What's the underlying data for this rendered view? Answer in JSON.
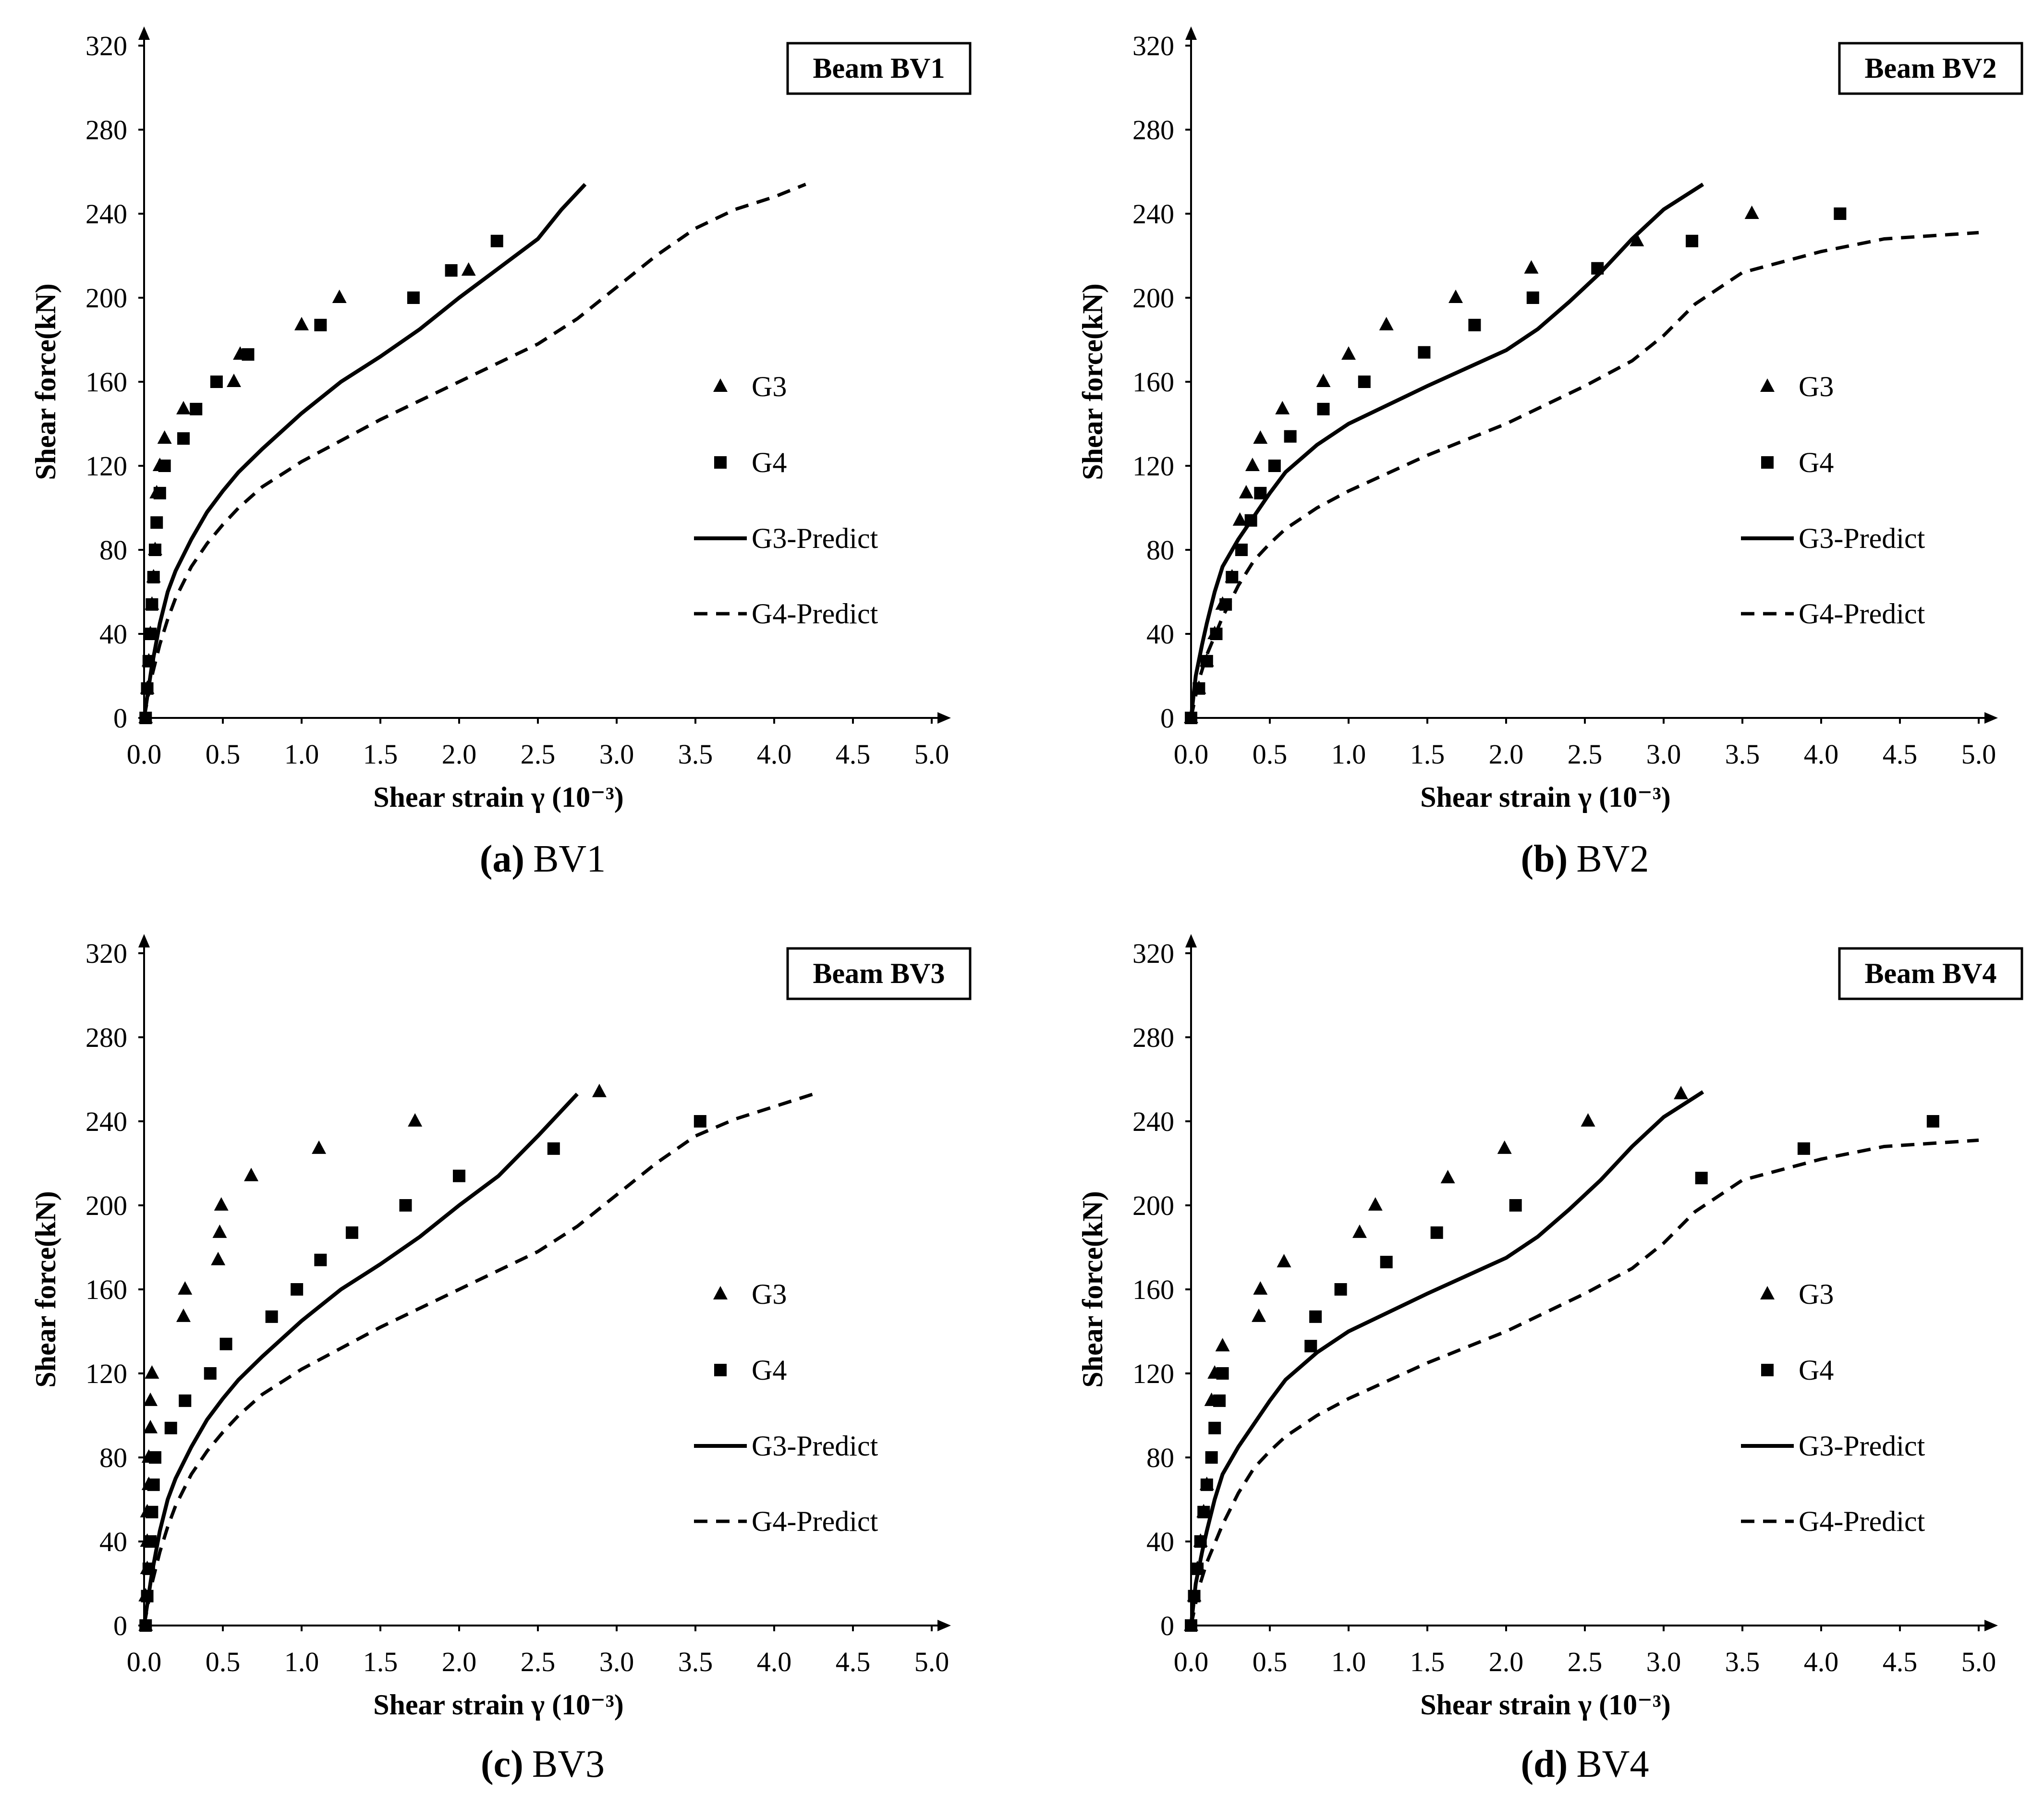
{
  "legend": {
    "g3": "G3",
    "g4": "G4",
    "g3_predict": "G3-Predict",
    "g4_predict": "G4-Predict"
  },
  "chart_data": [
    {
      "type": "scatter",
      "title": "Beam BV1",
      "caption_letter": "(a)",
      "caption_text": "BV1",
      "xlabel": "Shear strain γ (10⁻³)",
      "ylabel": "Shear force(kN)",
      "xlim": [
        0,
        5
      ],
      "ylim": [
        0,
        320
      ],
      "xticks": [
        "0.0",
        "0.5",
        "1.0",
        "1.5",
        "2.0",
        "2.5",
        "3.0",
        "3.5",
        "4.0",
        "4.5",
        "5.0"
      ],
      "yticks": [
        "0",
        "40",
        "80",
        "120",
        "160",
        "200",
        "240",
        "280",
        "320"
      ],
      "series": [
        {
          "name": "G3",
          "style": "triangle",
          "x": [
            0.01,
            0.02,
            0.03,
            0.04,
            0.05,
            0.06,
            0.07,
            0.08,
            0.1,
            0.13,
            0.25,
            0.57,
            0.61,
            1.0,
            1.24,
            2.06
          ],
          "y": [
            0,
            14,
            27,
            40,
            54,
            67,
            80,
            107,
            120,
            133,
            147,
            160,
            173,
            187,
            200,
            213
          ]
        },
        {
          "name": "G4",
          "style": "square",
          "x": [
            0.01,
            0.02,
            0.03,
            0.04,
            0.05,
            0.06,
            0.07,
            0.08,
            0.1,
            0.13,
            0.25,
            0.33,
            0.46,
            0.66,
            1.12,
            1.71,
            1.95,
            2.24
          ],
          "y": [
            0,
            14,
            27,
            40,
            54,
            67,
            80,
            93,
            107,
            120,
            133,
            147,
            160,
            173,
            187,
            200,
            213,
            227
          ]
        },
        {
          "name": "G3-Predict",
          "style": "solid",
          "x": [
            0.0,
            0.05,
            0.1,
            0.15,
            0.2,
            0.3,
            0.4,
            0.5,
            0.6,
            0.75,
            1.0,
            1.25,
            1.5,
            1.75,
            2.0,
            2.25,
            2.5,
            2.65,
            2.8
          ],
          "y": [
            0,
            25,
            45,
            60,
            70,
            85,
            98,
            108,
            117,
            128,
            145,
            160,
            172,
            185,
            200,
            214,
            228,
            242,
            254
          ]
        },
        {
          "name": "G4-Predict",
          "style": "dashed",
          "x": [
            0.0,
            0.05,
            0.1,
            0.15,
            0.2,
            0.3,
            0.4,
            0.5,
            0.6,
            0.75,
            1.0,
            1.5,
            2.0,
            2.5,
            2.75,
            3.0,
            3.25,
            3.5,
            3.75,
            4.0,
            4.2
          ],
          "y": [
            0,
            20,
            35,
            47,
            57,
            72,
            83,
            92,
            100,
            110,
            122,
            142,
            160,
            178,
            190,
            205,
            220,
            233,
            242,
            248,
            254
          ]
        }
      ]
    },
    {
      "type": "scatter",
      "title": "Beam BV2",
      "caption_letter": "(b)",
      "caption_text": "BV2",
      "xlabel": "Shear strain γ (10⁻³)",
      "ylabel": "Shear force(kN)",
      "xlim": [
        0,
        5
      ],
      "ylim": [
        0,
        320
      ],
      "xticks": [
        "0.0",
        "0.5",
        "1.0",
        "1.5",
        "2.0",
        "2.5",
        "3.0",
        "3.5",
        "4.0",
        "4.5",
        "5.0"
      ],
      "yticks": [
        "0",
        "40",
        "80",
        "120",
        "160",
        "200",
        "240",
        "280",
        "320"
      ],
      "series": [
        {
          "name": "G3",
          "style": "triangle",
          "x": [
            0.0,
            0.05,
            0.1,
            0.15,
            0.2,
            0.26,
            0.31,
            0.35,
            0.39,
            0.44,
            0.58,
            0.84,
            1.0,
            1.24,
            1.68,
            2.16,
            2.83,
            3.56
          ],
          "y": [
            0,
            14,
            27,
            40,
            54,
            67,
            94,
            107,
            120,
            133,
            147,
            160,
            173,
            187,
            200,
            214,
            227,
            240
          ]
        },
        {
          "name": "G4",
          "style": "square",
          "x": [
            0.0,
            0.05,
            0.1,
            0.16,
            0.22,
            0.26,
            0.32,
            0.38,
            0.44,
            0.53,
            0.63,
            0.84,
            1.1,
            1.48,
            1.8,
            2.17,
            2.58,
            3.18,
            4.12
          ],
          "y": [
            0,
            14,
            27,
            40,
            54,
            67,
            80,
            94,
            107,
            120,
            134,
            147,
            160,
            174,
            187,
            200,
            214,
            227,
            240
          ]
        },
        {
          "name": "G3-Predict",
          "style": "solid",
          "x": [
            0.0,
            0.03,
            0.07,
            0.1,
            0.15,
            0.2,
            0.3,
            0.4,
            0.5,
            0.6,
            0.8,
            1.0,
            1.5,
            2.0,
            2.2,
            2.4,
            2.6,
            2.8,
            3.0,
            3.25
          ],
          "y": [
            0,
            20,
            35,
            45,
            60,
            72,
            85,
            96,
            107,
            117,
            130,
            140,
            158,
            175,
            185,
            198,
            212,
            228,
            242,
            254
          ]
        },
        {
          "name": "G4-Predict",
          "style": "dashed",
          "x": [
            0.0,
            0.05,
            0.1,
            0.2,
            0.3,
            0.4,
            0.5,
            0.6,
            0.8,
            1.0,
            1.5,
            2.0,
            2.5,
            2.8,
            3.0,
            3.2,
            3.5,
            4.0,
            4.4,
            5.0
          ],
          "y": [
            0,
            18,
            30,
            48,
            63,
            75,
            83,
            90,
            100,
            108,
            125,
            140,
            158,
            170,
            182,
            197,
            212,
            222,
            228,
            231
          ]
        }
      ]
    },
    {
      "type": "scatter",
      "title": "Beam BV3",
      "caption_letter": "(c)",
      "caption_text": "BV3",
      "xlabel": "Shear strain γ (10⁻³)",
      "ylabel": "Shear force(kN)",
      "xlim": [
        0,
        5
      ],
      "ylim": [
        0,
        320
      ],
      "xticks": [
        "0.0",
        "0.5",
        "1.0",
        "1.5",
        "2.0",
        "2.5",
        "3.0",
        "3.5",
        "4.0",
        "4.5",
        "5.0"
      ],
      "yticks": [
        "0",
        "40",
        "80",
        "120",
        "160",
        "200",
        "240",
        "280",
        "320"
      ],
      "series": [
        {
          "name": "G3",
          "style": "triangle",
          "x": [
            0.01,
            0.01,
            0.02,
            0.02,
            0.02,
            0.03,
            0.03,
            0.04,
            0.04,
            0.05,
            0.25,
            0.26,
            0.47,
            0.48,
            0.49,
            0.68,
            1.11,
            1.72,
            2.89
          ],
          "y": [
            0,
            14,
            27,
            40,
            54,
            67,
            80,
            94,
            107,
            120,
            147,
            160,
            174,
            187,
            200,
            214,
            227,
            240,
            254
          ]
        },
        {
          "name": "G4",
          "style": "square",
          "x": [
            0.01,
            0.02,
            0.03,
            0.04,
            0.05,
            0.06,
            0.07,
            0.17,
            0.26,
            0.42,
            0.52,
            0.81,
            0.97,
            1.12,
            1.32,
            1.66,
            2.0,
            2.6,
            3.53
          ],
          "y": [
            0,
            14,
            27,
            40,
            54,
            67,
            80,
            94,
            107,
            120,
            134,
            147,
            160,
            174,
            187,
            200,
            214,
            227,
            240
          ]
        },
        {
          "name": "G3-Predict",
          "style": "solid",
          "x": [
            0.0,
            0.05,
            0.1,
            0.15,
            0.2,
            0.3,
            0.4,
            0.5,
            0.6,
            0.75,
            1.0,
            1.25,
            1.5,
            1.75,
            2.0,
            2.25,
            2.5,
            2.75
          ],
          "y": [
            0,
            25,
            45,
            60,
            70,
            85,
            98,
            108,
            117,
            128,
            145,
            160,
            172,
            185,
            200,
            214,
            233,
            253
          ]
        },
        {
          "name": "G4-Predict",
          "style": "dashed",
          "x": [
            0.0,
            0.05,
            0.1,
            0.15,
            0.2,
            0.3,
            0.4,
            0.5,
            0.6,
            0.75,
            1.0,
            1.5,
            2.0,
            2.5,
            2.75,
            3.0,
            3.25,
            3.5,
            3.75,
            4.0,
            4.25
          ],
          "y": [
            0,
            20,
            35,
            47,
            57,
            72,
            83,
            92,
            100,
            110,
            122,
            142,
            160,
            178,
            190,
            205,
            220,
            233,
            241,
            247,
            253
          ]
        }
      ]
    },
    {
      "type": "scatter",
      "title": "Beam BV4",
      "caption_letter": "(d)",
      "caption_text": "BV4",
      "xlabel": "Shear strain γ (10⁻³)",
      "ylabel": "Shear force(kN)",
      "xlim": [
        0,
        5
      ],
      "ylim": [
        0,
        320
      ],
      "xticks": [
        "0.0",
        "0.5",
        "1.0",
        "1.5",
        "2.0",
        "2.5",
        "3.0",
        "3.5",
        "4.0",
        "4.5",
        "5.0"
      ],
      "yticks": [
        "0",
        "40",
        "80",
        "120",
        "160",
        "200",
        "240",
        "280",
        "320"
      ],
      "series": [
        {
          "name": "G3",
          "style": "triangle",
          "x": [
            0.0,
            0.02,
            0.04,
            0.06,
            0.08,
            0.1,
            0.13,
            0.15,
            0.2,
            0.43,
            0.44,
            0.59,
            1.07,
            1.17,
            1.63,
            1.99,
            2.52,
            3.11
          ],
          "y": [
            0,
            14,
            27,
            40,
            54,
            67,
            107,
            120,
            133,
            147,
            160,
            173,
            187,
            200,
            213,
            227,
            240,
            253
          ]
        },
        {
          "name": "G4",
          "style": "square",
          "x": [
            0.0,
            0.02,
            0.04,
            0.06,
            0.08,
            0.1,
            0.13,
            0.15,
            0.18,
            0.2,
            0.76,
            0.79,
            0.95,
            1.24,
            1.56,
            2.06,
            3.24,
            3.89,
            4.71
          ],
          "y": [
            0,
            14,
            27,
            40,
            54,
            67,
            80,
            94,
            107,
            120,
            133,
            147,
            160,
            173,
            187,
            200,
            213,
            227,
            240
          ]
        },
        {
          "name": "G3-Predict",
          "style": "solid",
          "x": [
            0.0,
            0.03,
            0.07,
            0.1,
            0.15,
            0.2,
            0.3,
            0.4,
            0.5,
            0.6,
            0.8,
            1.0,
            1.5,
            2.0,
            2.2,
            2.4,
            2.6,
            2.8,
            3.0,
            3.25
          ],
          "y": [
            0,
            20,
            35,
            45,
            60,
            72,
            85,
            96,
            107,
            117,
            130,
            140,
            158,
            175,
            185,
            198,
            212,
            228,
            242,
            254
          ]
        },
        {
          "name": "G4-Predict",
          "style": "dashed",
          "x": [
            0.0,
            0.05,
            0.1,
            0.2,
            0.3,
            0.4,
            0.5,
            0.6,
            0.8,
            1.0,
            1.5,
            2.0,
            2.5,
            2.8,
            3.0,
            3.2,
            3.5,
            4.0,
            4.4,
            5.0
          ],
          "y": [
            0,
            18,
            30,
            48,
            63,
            75,
            83,
            90,
            100,
            108,
            125,
            140,
            158,
            170,
            182,
            197,
            212,
            222,
            228,
            231
          ]
        }
      ]
    }
  ]
}
